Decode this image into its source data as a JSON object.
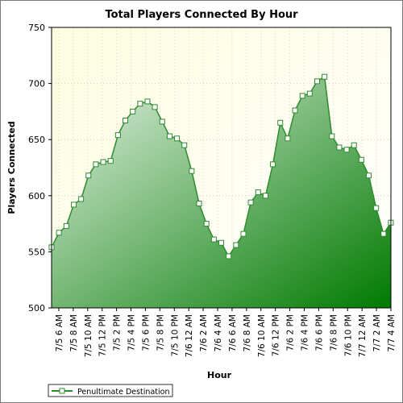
{
  "chart_data": {
    "type": "area",
    "title": "Total Players Connected By Hour",
    "xlabel": "Hour",
    "ylabel": "Players Connected",
    "ylim": [
      500,
      750
    ],
    "yticks": [
      500,
      550,
      600,
      650,
      700,
      750
    ],
    "grid": true,
    "legend_position": "bottom-left",
    "colors": {
      "plot_background_top": "#fdfde0",
      "line": "#2e8b2e",
      "fill_light": "#e6f2e6",
      "fill_dark": "#007a00"
    },
    "x_tick_labels": [
      "7/5 6 AM",
      "7/5 8 AM",
      "7/5 10 AM",
      "7/5 12 PM",
      "7/5 2 PM",
      "7/5 4 PM",
      "7/5 6 PM",
      "7/5 8 PM",
      "7/5 10 PM",
      "7/6 12 AM",
      "7/6 2 AM",
      "7/6 4 AM",
      "7/6 6 AM",
      "7/6 8 AM",
      "7/6 10 AM",
      "7/6 12 PM",
      "7/6 2 PM",
      "7/6 4 PM",
      "7/6 6 PM",
      "7/6 8 PM",
      "7/6 10 PM",
      "7/7 12 AM",
      "7/7 2 AM",
      "7/7 4 AM"
    ],
    "series": [
      {
        "name": "Penultimate Destination",
        "values": [
          554,
          567,
          573,
          592,
          597,
          618,
          628,
          630,
          631,
          654,
          667,
          675,
          682,
          684,
          679,
          666,
          653,
          651,
          645,
          622,
          593,
          575,
          561,
          558,
          546,
          556,
          566,
          594,
          603,
          600,
          628,
          665,
          651,
          676,
          689,
          691,
          702,
          706,
          653,
          643,
          641,
          645,
          632,
          618,
          589,
          566,
          576
        ]
      }
    ]
  }
}
